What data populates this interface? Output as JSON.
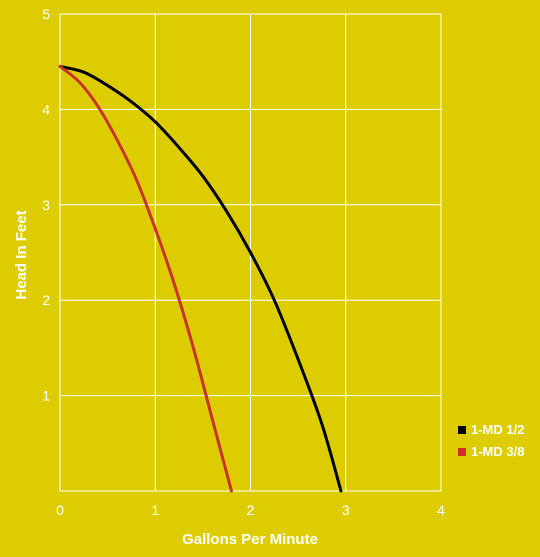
{
  "colors": {
    "background": "#ddcd00",
    "grid": "#ffffff",
    "text": "#ffffff"
  },
  "chart_data": {
    "type": "line",
    "title": "",
    "xlabel": "Gallons Per Minute",
    "ylabel": "Head In Feet",
    "xlim": [
      0,
      4
    ],
    "ylim": [
      0,
      5
    ],
    "xticks": [
      "0",
      "1",
      "2",
      "3",
      "4"
    ],
    "yticks": [
      "1",
      "2",
      "3",
      "4",
      "5"
    ],
    "grid": true,
    "legend": "right",
    "series": [
      {
        "name": "1-MD 1/2",
        "color": "#000000",
        "x": [
          0,
          0.25,
          0.5,
          0.75,
          1.0,
          1.25,
          1.5,
          1.75,
          2.0,
          2.25,
          2.5,
          2.75,
          2.95
        ],
        "y": [
          4.45,
          4.39,
          4.25,
          4.08,
          3.87,
          3.6,
          3.3,
          2.93,
          2.5,
          2.0,
          1.38,
          0.7,
          0
        ]
      },
      {
        "name": "1-MD 3/8",
        "color": "#c8342a",
        "x": [
          0,
          0.2,
          0.4,
          0.6,
          0.8,
          1.0,
          1.2,
          1.4,
          1.6,
          1.8
        ],
        "y": [
          4.45,
          4.29,
          4.03,
          3.68,
          3.27,
          2.75,
          2.17,
          1.5,
          0.75,
          0
        ]
      }
    ]
  }
}
